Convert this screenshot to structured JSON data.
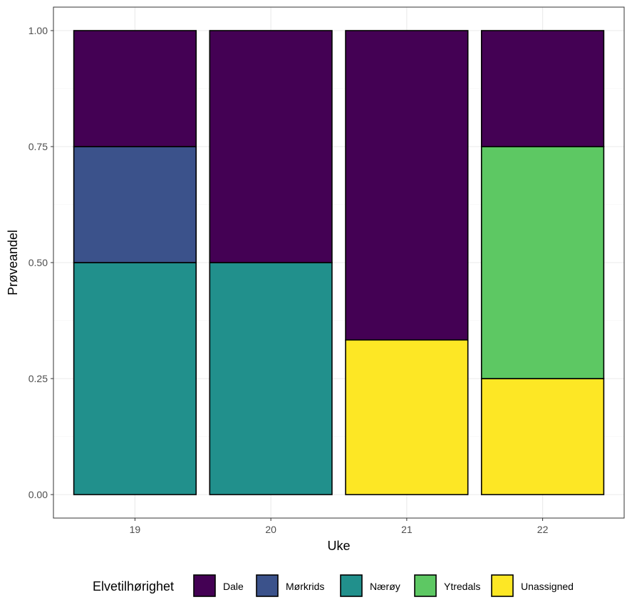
{
  "chart_data": {
    "type": "bar",
    "stacked": "proportion",
    "categories": [
      "19",
      "20",
      "21",
      "22"
    ],
    "xlabel": "Uke",
    "ylabel": "Prøveandel",
    "ylim": [
      0,
      1
    ],
    "yticks": [
      "0.00",
      "0.25",
      "0.50",
      "0.75",
      "1.00"
    ],
    "grid": true,
    "legend": {
      "title": "Elvetilhørighet",
      "position": "bottom"
    },
    "series": [
      {
        "name": "Dale",
        "color": "#440154",
        "values": [
          0.25,
          0.5,
          0.6667,
          0.25
        ]
      },
      {
        "name": "Mørkrids",
        "color": "#3B528B",
        "values": [
          0.25,
          0,
          0,
          0
        ]
      },
      {
        "name": "Nærøy",
        "color": "#21908C",
        "values": [
          0.5,
          0.5,
          0,
          0
        ]
      },
      {
        "name": "Ytredals",
        "color": "#5DC863",
        "values": [
          0,
          0,
          0,
          0.5
        ]
      },
      {
        "name": "Unassigned",
        "color": "#FDE725",
        "values": [
          0,
          0,
          0.3333,
          0.25
        ]
      }
    ]
  }
}
